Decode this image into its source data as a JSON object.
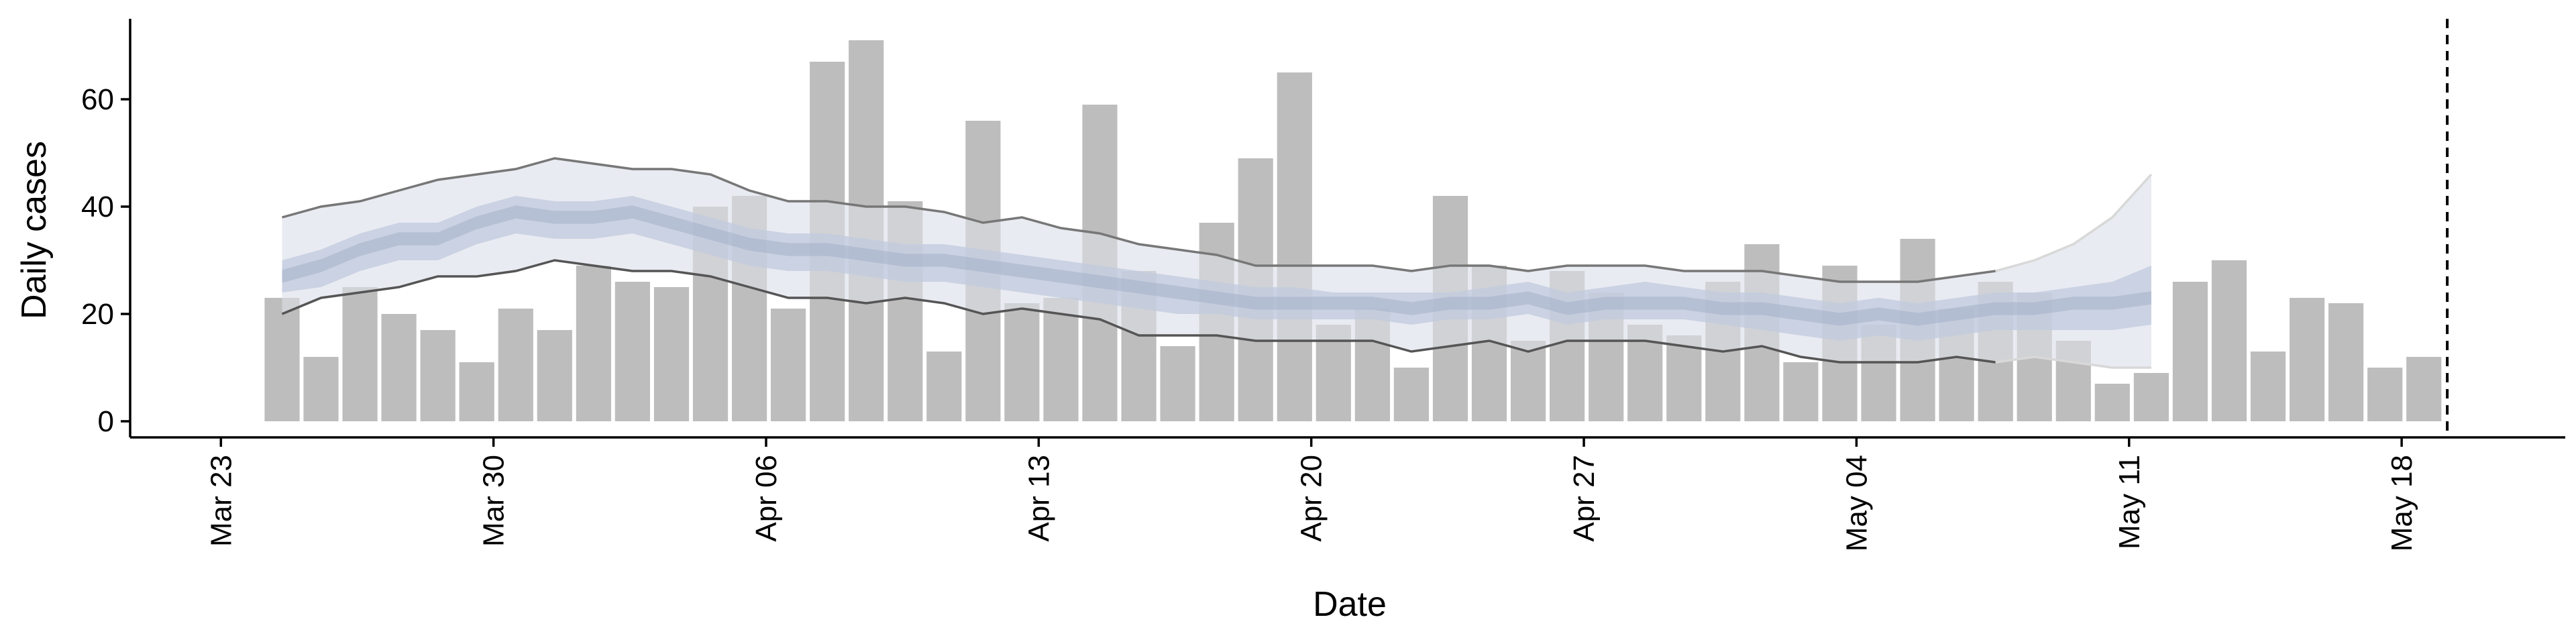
{
  "chart_data": {
    "type": "bar",
    "title": "",
    "xlabel": "Date",
    "ylabel": "Daily cases",
    "x_start": "2020-03-24",
    "x_ticks": [
      "Mar 23",
      "Mar 30",
      "Apr 06",
      "Apr 13",
      "Apr 20",
      "Apr 27",
      "May 04",
      "May 11",
      "May 18"
    ],
    "y_ticks": [
      "0",
      "20",
      "40",
      "60"
    ],
    "ylim": [
      -3,
      75
    ],
    "bars": {
      "name": "Daily cases",
      "color": "#bdbdbd",
      "values": [
        23,
        12,
        25,
        20,
        17,
        11,
        21,
        17,
        29,
        26,
        25,
        40,
        42,
        21,
        67,
        71,
        41,
        13,
        56,
        22,
        23,
        59,
        28,
        14,
        37,
        49,
        65,
        18,
        21,
        10,
        42,
        29,
        15,
        28,
        24,
        18,
        16,
        26,
        33,
        11,
        29,
        18,
        34,
        21,
        26,
        24,
        15,
        7,
        9,
        26,
        30,
        13,
        23,
        22,
        10,
        12
      ]
    },
    "estimate": {
      "outer_color": "#e8eaf2",
      "inner_color": "#c2ccde",
      "median_color": "#a4b0c8",
      "outer_upper": [
        38,
        40,
        41,
        43,
        45,
        46,
        47,
        49,
        48,
        47,
        47,
        46,
        43,
        41,
        41,
        40,
        40,
        39,
        37,
        38,
        36,
        35,
        33,
        32,
        31,
        29,
        29,
        29,
        29,
        28,
        29,
        29,
        28,
        29,
        29,
        29,
        28,
        28,
        28,
        27,
        26,
        26,
        26,
        27,
        28,
        30,
        33,
        38,
        46
      ],
      "inner_upper": [
        30,
        32,
        35,
        37,
        37,
        40,
        42,
        41,
        41,
        42,
        40,
        38,
        36,
        35,
        35,
        34,
        33,
        33,
        32,
        31,
        30,
        29,
        28,
        27,
        26,
        25,
        25,
        24,
        24,
        24,
        24,
        25,
        26,
        24,
        25,
        26,
        25,
        24,
        24,
        23,
        22,
        23,
        22,
        23,
        24,
        24,
        25,
        26,
        29
      ],
      "median": [
        27,
        29,
        32,
        34,
        34,
        37,
        39,
        38,
        38,
        39,
        37,
        35,
        33,
        32,
        32,
        31,
        30,
        30,
        29,
        28,
        27,
        26,
        25,
        24,
        23,
        22,
        22,
        22,
        22,
        21,
        22,
        22,
        23,
        21,
        22,
        22,
        22,
        21,
        21,
        20,
        19,
        20,
        19,
        20,
        21,
        21,
        22,
        22,
        23
      ],
      "inner_lower": [
        24,
        25,
        28,
        30,
        30,
        33,
        35,
        34,
        34,
        35,
        33,
        31,
        29,
        28,
        28,
        27,
        26,
        26,
        25,
        24,
        23,
        22,
        21,
        20,
        20,
        19,
        19,
        19,
        19,
        18,
        19,
        19,
        20,
        18,
        19,
        19,
        19,
        18,
        17,
        16,
        15,
        16,
        15,
        16,
        17,
        17,
        17,
        17,
        18
      ],
      "outer_lower": [
        20,
        23,
        24,
        25,
        27,
        27,
        28,
        30,
        29,
        28,
        28,
        27,
        25,
        23,
        23,
        22,
        23,
        22,
        20,
        21,
        20,
        19,
        16,
        16,
        16,
        15,
        15,
        15,
        15,
        13,
        14,
        15,
        13,
        15,
        15,
        15,
        14,
        13,
        14,
        12,
        11,
        11,
        11,
        12,
        11,
        12,
        11,
        10,
        10
      ],
      "line_upper_color": "#777777",
      "line_lower_color": "#555555",
      "line_fade_color": "#d8d8d8"
    },
    "cutoff": {
      "index": 55.6,
      "style": "dashed",
      "color": "#000000"
    },
    "grid": false,
    "legend": "none"
  }
}
